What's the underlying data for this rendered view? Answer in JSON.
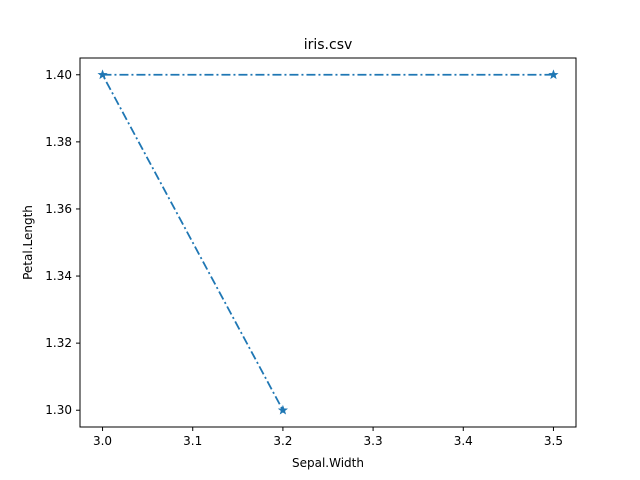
{
  "chart_data": {
    "type": "line",
    "title": "iris.csv",
    "xlabel": "Sepal.Width",
    "ylabel": "Petal.Length",
    "xlim": [
      2.975,
      3.525
    ],
    "ylim": [
      1.295,
      1.405
    ],
    "x_ticks": [
      3.0,
      3.1,
      3.2,
      3.3,
      3.4,
      3.5
    ],
    "x_tick_labels": [
      "3.0",
      "3.1",
      "3.2",
      "3.3",
      "3.4",
      "3.5"
    ],
    "y_ticks": [
      1.3,
      1.32,
      1.34,
      1.36,
      1.38,
      1.4
    ],
    "y_tick_labels": [
      "1.30",
      "1.32",
      "1.34",
      "1.36",
      "1.38",
      "1.40"
    ],
    "grid": false,
    "series": [
      {
        "x": [
          3.5,
          3.0,
          3.2
        ],
        "y": [
          1.4,
          1.4,
          1.3
        ],
        "color": "#1f77b4",
        "line_style": "dash-dot",
        "marker": "star"
      }
    ]
  }
}
